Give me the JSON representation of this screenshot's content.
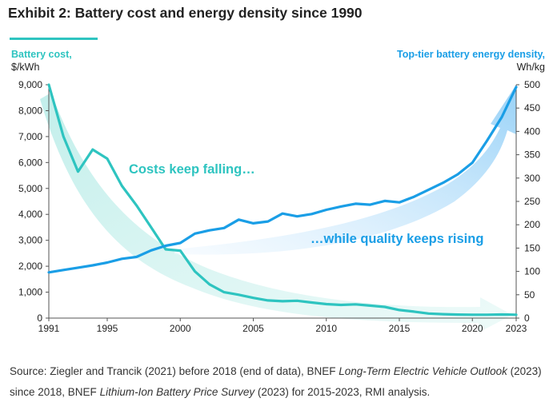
{
  "title": "Exhibit 2: Battery cost and energy density since 1990",
  "colors": {
    "cost": "#2ec4c0",
    "density": "#1a9ee6",
    "accent": "#2ec4c0"
  },
  "source": {
    "p1": "Source: Ziegler and Trancik (2021) before 2018 (end of data), BNEF ",
    "i1": "Long-Term Electric Vehicle Outlook",
    "p2": " (2023) since 2018, BNEF ",
    "i2": "Lithium-Ion Battery Price Survey",
    "p3": " (2023) for 2015-2023, RMI analysis."
  },
  "chart_data": {
    "type": "line",
    "xlabel": "",
    "x_ticks": [
      "1991",
      "1995",
      "2000",
      "2005",
      "2010",
      "2015",
      "2020",
      "2023"
    ],
    "xlim": [
      1991,
      2023
    ],
    "left_axis": {
      "label": "Battery cost,",
      "unit": "$/kWh",
      "ylim": [
        0,
        9000
      ],
      "ticks": [
        "0",
        "1,000",
        "2,000",
        "3,000",
        "4,000",
        "5,000",
        "6,000",
        "7,000",
        "8,000",
        "9,000"
      ]
    },
    "right_axis": {
      "label": "Top-tier battery energy density,",
      "unit": "Wh/kg",
      "ylim": [
        0,
        500
      ],
      "ticks": [
        "0",
        "50",
        "100",
        "150",
        "200",
        "250",
        "300",
        "350",
        "400",
        "450",
        "500"
      ]
    },
    "series": [
      {
        "name": "Battery cost",
        "axis": "left",
        "x": [
          1991,
          1992,
          1993,
          1994,
          1995,
          1996,
          1997,
          1998,
          1999,
          2000,
          2001,
          2002,
          2003,
          2004,
          2005,
          2006,
          2007,
          2008,
          2009,
          2010,
          2011,
          2012,
          2013,
          2014,
          2015,
          2016,
          2017,
          2018,
          2019,
          2020,
          2021,
          2022,
          2023
        ],
        "values": [
          9000,
          7000,
          5650,
          6500,
          6150,
          5100,
          4350,
          3500,
          2650,
          2600,
          1800,
          1300,
          1000,
          900,
          780,
          680,
          650,
          670,
          600,
          540,
          510,
          530,
          480,
          430,
          310,
          250,
          175,
          150,
          135,
          130,
          130,
          140,
          130
        ]
      },
      {
        "name": "Top-tier battery energy density",
        "axis": "right",
        "x": [
          1991,
          1992,
          1993,
          1994,
          1995,
          1996,
          1997,
          1998,
          1999,
          2000,
          2001,
          2002,
          2003,
          2004,
          2005,
          2006,
          2007,
          2008,
          2009,
          2010,
          2011,
          2012,
          2013,
          2014,
          2015,
          2016,
          2017,
          2018,
          2019,
          2020,
          2021,
          2022,
          2023
        ],
        "values": [
          98,
          103,
          108,
          113,
          119,
          127,
          131,
          145,
          155,
          161,
          181,
          188,
          193,
          211,
          203,
          207,
          224,
          218,
          223,
          232,
          239,
          245,
          243,
          251,
          248,
          260,
          275,
          290,
          308,
          333,
          380,
          430,
          495
        ]
      }
    ],
    "annotations": [
      {
        "text": "Costs keep falling…",
        "series": "Battery cost"
      },
      {
        "text": "…while quality keeps rising",
        "series": "Top-tier battery energy density"
      }
    ]
  }
}
